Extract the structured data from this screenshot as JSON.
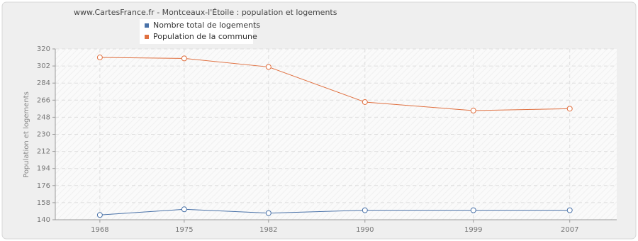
{
  "chart_data": {
    "type": "line",
    "title": "www.CartesFrance.fr - Montceaux-l'Étoile : population et logements",
    "y_label": "Population et logements",
    "x": [
      1968,
      1975,
      1982,
      1990,
      1999,
      2007
    ],
    "series": [
      {
        "name": "Nombre total de logements",
        "color": "#4a72a8",
        "values": [
          145,
          151,
          147,
          150,
          150,
          150
        ]
      },
      {
        "name": "Population de la commune",
        "color": "#e07040",
        "values": [
          311,
          310,
          301,
          264,
          255,
          257
        ]
      }
    ],
    "xlim": [
      1964.3,
      2010.9
    ],
    "xticks": [
      1968,
      1975,
      1982,
      1990,
      1999,
      2007
    ],
    "ylim": [
      140,
      320
    ],
    "yticks": [
      140,
      158,
      176,
      194,
      212,
      230,
      248,
      266,
      284,
      302,
      320
    ],
    "grid": true
  }
}
